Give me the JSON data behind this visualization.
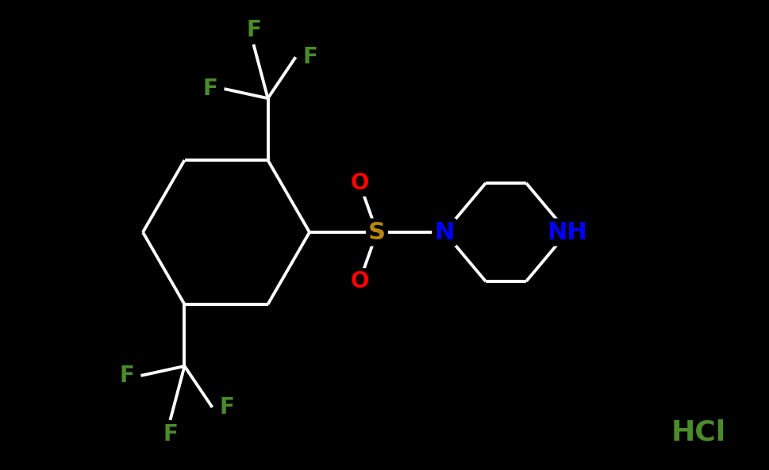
{
  "background_color": "#000000",
  "bond_color": "#ffffff",
  "atom_colors": {
    "F": "#4a8c2a",
    "O": "#ff0000",
    "S": "#b8860b",
    "N": "#0000ff",
    "NH": "#0000ff",
    "HCl": "#4a8c2a"
  },
  "bond_width": 2.8,
  "font_size": 20,
  "fig_width": 9.7,
  "fig_height": 5.93,
  "dpi": 100
}
